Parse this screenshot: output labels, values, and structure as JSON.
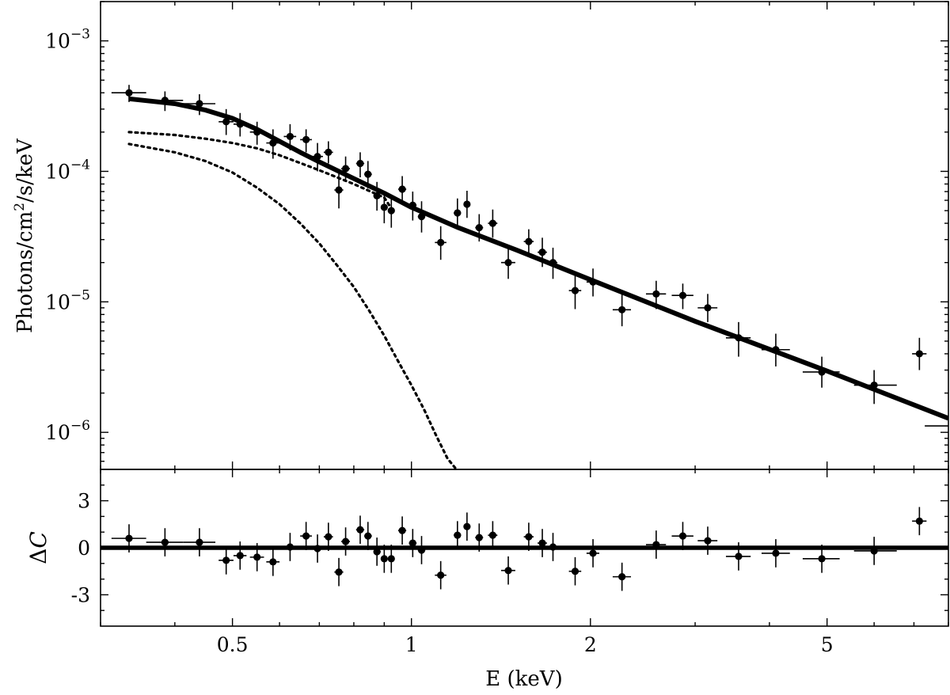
{
  "chart_data": [
    {
      "panel": "spectrum",
      "type": "scatter",
      "xscale": "log",
      "yscale": "log",
      "xlim": [
        0.3,
        8.0
      ],
      "ylim": [
        5.2e-07,
        0.002
      ],
      "xlabel": "E (keV)",
      "ylabel": "Photons/cm²/s/keV",
      "ylabel_parts": [
        "Photons/cm",
        "2",
        "/s/keV"
      ],
      "yticks": [
        {
          "value": 0.001,
          "base": "10",
          "exp": "−3"
        },
        {
          "value": 0.0001,
          "base": "10",
          "exp": "−4"
        },
        {
          "value": 1e-05,
          "base": "10",
          "exp": "−5"
        },
        {
          "value": 1e-06,
          "base": "10",
          "exp": "−6"
        }
      ],
      "xticks": [
        {
          "value": 0.5,
          "label": "0.5"
        },
        {
          "value": 1,
          "label": "1"
        },
        {
          "value": 2,
          "label": "2"
        },
        {
          "value": 5,
          "label": "5"
        }
      ],
      "series": [
        {
          "kind": "data",
          "points": [
            {
              "x": 0.335,
              "xlo": 0.313,
              "xhi": 0.358,
              "y": 0.0004,
              "ylo": 0.00034,
              "yhi": 0.00046
            },
            {
              "x": 0.385,
              "xlo": 0.358,
              "xhi": 0.413,
              "y": 0.00035,
              "ylo": 0.00029,
              "yhi": 0.00041
            },
            {
              "x": 0.44,
              "xlo": 0.413,
              "xhi": 0.468,
              "y": 0.00033,
              "ylo": 0.00027,
              "yhi": 0.00039
            },
            {
              "x": 0.488,
              "xlo": 0.474,
              "xhi": 0.502,
              "y": 0.00024,
              "ylo": 0.00019,
              "yhi": 0.0003
            },
            {
              "x": 0.515,
              "xlo": 0.502,
              "xhi": 0.528,
              "y": 0.00023,
              "ylo": 0.000185,
              "yhi": 0.00028
            },
            {
              "x": 0.55,
              "xlo": 0.535,
              "xhi": 0.565,
              "y": 0.0002,
              "ylo": 0.00016,
              "yhi": 0.00024
            },
            {
              "x": 0.585,
              "xlo": 0.57,
              "xhi": 0.6,
              "y": 0.000165,
              "ylo": 0.000125,
              "yhi": 0.00021
            },
            {
              "x": 0.625,
              "xlo": 0.61,
              "xhi": 0.64,
              "y": 0.000185,
              "ylo": 0.000145,
              "yhi": 0.00023
            },
            {
              "x": 0.665,
              "xlo": 0.65,
              "xhi": 0.68,
              "y": 0.000175,
              "ylo": 0.00014,
              "yhi": 0.00021
            },
            {
              "x": 0.695,
              "xlo": 0.68,
              "xhi": 0.71,
              "y": 0.00013,
              "ylo": 0.0001,
              "yhi": 0.000165
            },
            {
              "x": 0.725,
              "xlo": 0.712,
              "xhi": 0.738,
              "y": 0.00014,
              "ylo": 0.000115,
              "yhi": 0.00017
            },
            {
              "x": 0.755,
              "xlo": 0.742,
              "xhi": 0.768,
              "y": 7.2e-05,
              "ylo": 5.2e-05,
              "yhi": 9.6e-05
            },
            {
              "x": 0.775,
              "xlo": 0.762,
              "xhi": 0.788,
              "y": 0.000105,
              "ylo": 8.3e-05,
              "yhi": 0.00013
            },
            {
              "x": 0.82,
              "xlo": 0.807,
              "xhi": 0.833,
              "y": 0.000115,
              "ylo": 9e-05,
              "yhi": 0.00014
            },
            {
              "x": 0.845,
              "xlo": 0.833,
              "xhi": 0.858,
              "y": 9.5e-05,
              "ylo": 7.4e-05,
              "yhi": 0.00012
            },
            {
              "x": 0.875,
              "xlo": 0.863,
              "xhi": 0.888,
              "y": 6.5e-05,
              "ylo": 5e-05,
              "yhi": 8.3e-05
            },
            {
              "x": 0.9,
              "xlo": 0.888,
              "xhi": 0.912,
              "y": 5.3e-05,
              "ylo": 4e-05,
              "yhi": 7e-05
            },
            {
              "x": 0.925,
              "xlo": 0.913,
              "xhi": 0.937,
              "y": 5e-05,
              "ylo": 3.7e-05,
              "yhi": 6.6e-05
            },
            {
              "x": 0.965,
              "xlo": 0.95,
              "xhi": 0.98,
              "y": 7.3e-05,
              "ylo": 5.7e-05,
              "yhi": 9.2e-05
            },
            {
              "x": 1.005,
              "xlo": 0.99,
              "xhi": 1.02,
              "y": 5.5e-05,
              "ylo": 4.2e-05,
              "yhi": 7e-05
            },
            {
              "x": 1.04,
              "xlo": 1.025,
              "xhi": 1.055,
              "y": 4.5e-05,
              "ylo": 3.4e-05,
              "yhi": 5.9e-05
            },
            {
              "x": 1.12,
              "xlo": 1.095,
              "xhi": 1.145,
              "y": 2.85e-05,
              "ylo": 2.1e-05,
              "yhi": 3.8e-05
            },
            {
              "x": 1.195,
              "xlo": 1.178,
              "xhi": 1.212,
              "y": 4.8e-05,
              "ylo": 3.7e-05,
              "yhi": 6.2e-05
            },
            {
              "x": 1.24,
              "xlo": 1.225,
              "xhi": 1.255,
              "y": 5.6e-05,
              "ylo": 4.4e-05,
              "yhi": 7.1e-05
            },
            {
              "x": 1.3,
              "xlo": 1.28,
              "xhi": 1.32,
              "y": 3.7e-05,
              "ylo": 2.9e-05,
              "yhi": 4.7e-05
            },
            {
              "x": 1.37,
              "xlo": 1.345,
              "xhi": 1.395,
              "y": 4e-05,
              "ylo": 3.1e-05,
              "yhi": 5.1e-05
            },
            {
              "x": 1.455,
              "xlo": 1.415,
              "xhi": 1.495,
              "y": 2e-05,
              "ylo": 1.5e-05,
              "yhi": 2.6e-05
            },
            {
              "x": 1.575,
              "xlo": 1.545,
              "xhi": 1.605,
              "y": 2.9e-05,
              "ylo": 2.3e-05,
              "yhi": 3.6e-05
            },
            {
              "x": 1.66,
              "xlo": 1.63,
              "xhi": 1.69,
              "y": 2.4e-05,
              "ylo": 1.85e-05,
              "yhi": 3.1e-05
            },
            {
              "x": 1.73,
              "xlo": 1.7,
              "xhi": 1.76,
              "y": 2e-05,
              "ylo": 1.5e-05,
              "yhi": 2.6e-05
            },
            {
              "x": 1.885,
              "xlo": 1.84,
              "xhi": 1.93,
              "y": 1.22e-05,
              "ylo": 8.8e-06,
              "yhi": 1.65e-05
            },
            {
              "x": 2.02,
              "xlo": 1.97,
              "xhi": 2.07,
              "y": 1.42e-05,
              "ylo": 1.1e-05,
              "yhi": 1.8e-05
            },
            {
              "x": 2.26,
              "xlo": 2.18,
              "xhi": 2.34,
              "y": 8.7e-06,
              "ylo": 6.5e-06,
              "yhi": 1.15e-05
            },
            {
              "x": 2.58,
              "xlo": 2.48,
              "xhi": 2.68,
              "y": 1.15e-05,
              "ylo": 8.8e-06,
              "yhi": 1.45e-05
            },
            {
              "x": 2.86,
              "xlo": 2.74,
              "xhi": 2.98,
              "y": 1.12e-05,
              "ylo": 8.8e-06,
              "yhi": 1.38e-05
            },
            {
              "x": 3.15,
              "xlo": 3.03,
              "xhi": 3.27,
              "y": 9e-06,
              "ylo": 7e-06,
              "yhi": 1.15e-05
            },
            {
              "x": 3.55,
              "xlo": 3.38,
              "xhi": 3.72,
              "y": 5.3e-06,
              "ylo": 3.8e-06,
              "yhi": 7e-06
            },
            {
              "x": 4.1,
              "xlo": 3.88,
              "xhi": 4.33,
              "y": 4.3e-06,
              "ylo": 3.2e-06,
              "yhi": 5.7e-06
            },
            {
              "x": 4.9,
              "xlo": 4.55,
              "xhi": 5.25,
              "y": 2.9e-06,
              "ylo": 2.2e-06,
              "yhi": 3.8e-06
            },
            {
              "x": 6.0,
              "xlo": 5.55,
              "xhi": 6.55,
              "y": 2.3e-06,
              "ylo": 1.65e-06,
              "yhi": 3e-06
            },
            {
              "x": 7.15,
              "xlo": 6.95,
              "xhi": 7.35,
              "y": 4e-06,
              "ylo": 3e-06,
              "yhi": 5.3e-06
            },
            {
              "x": 7.7,
              "xlo": 7.3,
              "xhi": 8.0,
              "y": 1.12e-06,
              "ylo": 1.12e-06,
              "yhi": 1.12e-06,
              "nomarker": true
            }
          ]
        },
        {
          "kind": "total-model",
          "style": "solid",
          "points": [
            [
              0.335,
              0.00036
            ],
            [
              0.4,
              0.00033
            ],
            [
              0.45,
              0.000295
            ],
            [
              0.5,
              0.000255
            ],
            [
              0.55,
              0.00021
            ],
            [
              0.6,
              0.00017
            ],
            [
              0.65,
              0.00014
            ],
            [
              0.7,
              0.000118
            ],
            [
              0.8,
              8.8e-05
            ],
            [
              0.9,
              6.8e-05
            ],
            [
              1.0,
              5.3e-05
            ],
            [
              1.2,
              3.7e-05
            ],
            [
              1.5,
              2.5e-05
            ],
            [
              2.0,
              1.48e-05
            ],
            [
              3.0,
              7.1e-06
            ],
            [
              5.0,
              2.95e-06
            ],
            [
              8.0,
              1.28e-06
            ]
          ]
        },
        {
          "kind": "component-1",
          "style": "dotted",
          "points": [
            [
              0.335,
              0.0002
            ],
            [
              0.4,
              0.00019
            ],
            [
              0.45,
              0.000178
            ],
            [
              0.5,
              0.000165
            ],
            [
              0.55,
              0.00015
            ],
            [
              0.6,
              0.000133
            ],
            [
              0.65,
              0.000116
            ],
            [
              0.7,
              0.000102
            ],
            [
              0.8,
              8e-05
            ],
            [
              0.9,
              6.3e-05
            ],
            [
              0.925,
              5.2e-05
            ]
          ]
        },
        {
          "kind": "component-2",
          "style": "dotted",
          "points": [
            [
              0.335,
              0.000162
            ],
            [
              0.4,
              0.00014
            ],
            [
              0.45,
              0.00012
            ],
            [
              0.5,
              9.8e-05
            ],
            [
              0.55,
              7.5e-05
            ],
            [
              0.6,
              5.6e-05
            ],
            [
              0.65,
              4e-05
            ],
            [
              0.7,
              2.8e-05
            ],
            [
              0.75,
              1.9e-05
            ],
            [
              0.8,
              1.3e-05
            ],
            [
              0.85,
              8.5e-06
            ],
            [
              0.9,
              5.5e-06
            ],
            [
              0.95,
              3.5e-06
            ],
            [
              1.0,
              2.3e-06
            ],
            [
              1.05,
              1.5e-06
            ],
            [
              1.1,
              9.5e-07
            ],
            [
              1.15,
              6.3e-07
            ],
            [
              1.19,
              5.2e-07
            ]
          ]
        }
      ]
    },
    {
      "panel": "residuals",
      "type": "scatter",
      "xscale": "log",
      "xlim": [
        0.3,
        8.0
      ],
      "ylim": [
        -5,
        5
      ],
      "ylabel": "ΔC",
      "ylabel_parts": [
        "Δ",
        "C"
      ],
      "xlabel": "E (keV)",
      "yticks": [
        {
          "value": 3,
          "label": "3"
        },
        {
          "value": 0,
          "label": "0"
        },
        {
          "value": -3,
          "label": "-3"
        }
      ],
      "xticks": [
        {
          "value": 0.5,
          "label": "0.5"
        },
        {
          "value": 1,
          "label": "1"
        },
        {
          "value": 2,
          "label": "2"
        },
        {
          "value": 5,
          "label": "5"
        }
      ],
      "zero_line": 0,
      "points": [
        {
          "x": 0.335,
          "xlo": 0.313,
          "xhi": 0.358,
          "y": 0.6,
          "err": 0.9
        },
        {
          "x": 0.385,
          "xlo": 0.358,
          "xhi": 0.413,
          "y": 0.35,
          "err": 0.9
        },
        {
          "x": 0.44,
          "xlo": 0.413,
          "xhi": 0.468,
          "y": 0.35,
          "err": 0.9
        },
        {
          "x": 0.488,
          "xlo": 0.474,
          "xhi": 0.502,
          "y": -0.8,
          "err": 0.9
        },
        {
          "x": 0.515,
          "xlo": 0.502,
          "xhi": 0.528,
          "y": -0.5,
          "err": 0.9
        },
        {
          "x": 0.55,
          "xlo": 0.535,
          "xhi": 0.565,
          "y": -0.6,
          "err": 0.9
        },
        {
          "x": 0.585,
          "xlo": 0.57,
          "xhi": 0.6,
          "y": -0.9,
          "err": 0.9
        },
        {
          "x": 0.625,
          "xlo": 0.61,
          "xhi": 0.64,
          "y": 0.05,
          "err": 0.9
        },
        {
          "x": 0.665,
          "xlo": 0.65,
          "xhi": 0.68,
          "y": 0.75,
          "err": 0.9
        },
        {
          "x": 0.695,
          "xlo": 0.68,
          "xhi": 0.71,
          "y": -0.05,
          "err": 0.9
        },
        {
          "x": 0.725,
          "xlo": 0.712,
          "xhi": 0.738,
          "y": 0.7,
          "err": 0.9
        },
        {
          "x": 0.755,
          "xlo": 0.742,
          "xhi": 0.768,
          "y": -1.55,
          "err": 0.9
        },
        {
          "x": 0.775,
          "xlo": 0.762,
          "xhi": 0.788,
          "y": 0.4,
          "err": 0.9
        },
        {
          "x": 0.82,
          "xlo": 0.807,
          "xhi": 0.833,
          "y": 1.15,
          "err": 0.9
        },
        {
          "x": 0.845,
          "xlo": 0.833,
          "xhi": 0.858,
          "y": 0.75,
          "err": 0.9
        },
        {
          "x": 0.875,
          "xlo": 0.863,
          "xhi": 0.888,
          "y": -0.25,
          "err": 0.9
        },
        {
          "x": 0.9,
          "xlo": 0.888,
          "xhi": 0.912,
          "y": -0.7,
          "err": 0.9
        },
        {
          "x": 0.925,
          "xlo": 0.913,
          "xhi": 0.937,
          "y": -0.7,
          "err": 0.9
        },
        {
          "x": 0.965,
          "xlo": 0.95,
          "xhi": 0.98,
          "y": 1.1,
          "err": 0.9
        },
        {
          "x": 1.005,
          "xlo": 0.99,
          "xhi": 1.02,
          "y": 0.3,
          "err": 0.9
        },
        {
          "x": 1.04,
          "xlo": 1.025,
          "xhi": 1.055,
          "y": -0.15,
          "err": 0.9
        },
        {
          "x": 1.12,
          "xlo": 1.095,
          "xhi": 1.145,
          "y": -1.75,
          "err": 0.9
        },
        {
          "x": 1.195,
          "xlo": 1.178,
          "xhi": 1.212,
          "y": 0.8,
          "err": 0.9
        },
        {
          "x": 1.24,
          "xlo": 1.225,
          "xhi": 1.255,
          "y": 1.35,
          "err": 0.9
        },
        {
          "x": 1.3,
          "xlo": 1.28,
          "xhi": 1.32,
          "y": 0.65,
          "err": 0.9
        },
        {
          "x": 1.37,
          "xlo": 1.345,
          "xhi": 1.395,
          "y": 0.8,
          "err": 0.9
        },
        {
          "x": 1.455,
          "xlo": 1.415,
          "xhi": 1.495,
          "y": -1.45,
          "err": 0.9
        },
        {
          "x": 1.575,
          "xlo": 1.545,
          "xhi": 1.605,
          "y": 0.7,
          "err": 0.9
        },
        {
          "x": 1.66,
          "xlo": 1.63,
          "xhi": 1.69,
          "y": 0.3,
          "err": 0.9
        },
        {
          "x": 1.73,
          "xlo": 1.7,
          "xhi": 1.76,
          "y": 0.05,
          "err": 0.9
        },
        {
          "x": 1.885,
          "xlo": 1.84,
          "xhi": 1.93,
          "y": -1.5,
          "err": 0.9
        },
        {
          "x": 2.02,
          "xlo": 1.97,
          "xhi": 2.07,
          "y": -0.35,
          "err": 0.9
        },
        {
          "x": 2.26,
          "xlo": 2.18,
          "xhi": 2.34,
          "y": -1.85,
          "err": 0.9
        },
        {
          "x": 2.58,
          "xlo": 2.48,
          "xhi": 2.68,
          "y": 0.2,
          "err": 0.9
        },
        {
          "x": 2.86,
          "xlo": 2.74,
          "xhi": 2.98,
          "y": 0.75,
          "err": 0.9
        },
        {
          "x": 3.15,
          "xlo": 3.03,
          "xhi": 3.27,
          "y": 0.45,
          "err": 0.9
        },
        {
          "x": 3.55,
          "xlo": 3.38,
          "xhi": 3.72,
          "y": -0.55,
          "err": 0.9
        },
        {
          "x": 4.1,
          "xlo": 3.88,
          "xhi": 4.33,
          "y": -0.35,
          "err": 0.9
        },
        {
          "x": 4.9,
          "xlo": 4.55,
          "xhi": 5.25,
          "y": -0.7,
          "err": 0.9
        },
        {
          "x": 6.0,
          "xlo": 5.55,
          "xhi": 6.55,
          "y": -0.2,
          "err": 0.9
        },
        {
          "x": 7.15,
          "xlo": 6.95,
          "xhi": 7.35,
          "y": 1.7,
          "err": 0.9
        }
      ]
    }
  ],
  "colors": {
    "ink": "#000000",
    "background": "#ffffff"
  }
}
